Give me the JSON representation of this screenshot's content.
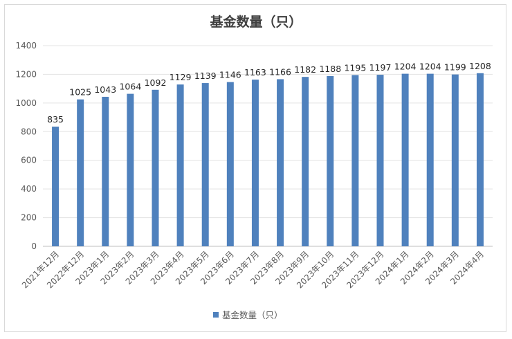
{
  "chart_data": {
    "type": "bar",
    "title": "基金数量（只）",
    "xlabel": "",
    "ylabel": "",
    "ylim": [
      0,
      1400
    ],
    "yticks": [
      0,
      200,
      400,
      600,
      800,
      1000,
      1200,
      1400
    ],
    "grid": true,
    "legend_position": "bottom",
    "categories": [
      "2021年12月",
      "2022年12月",
      "2023年1月",
      "2023年2月",
      "2023年3月",
      "2023年4月",
      "2023年5月",
      "2023年6月",
      "2023年7月",
      "2023年8月",
      "2023年9月",
      "2023年10月",
      "2023年11月",
      "2023年12月",
      "2024年1月",
      "2024年2月",
      "2024年3月",
      "2024年4月"
    ],
    "series": [
      {
        "name": "基金数量（只）",
        "color": "#4f81bd",
        "values": [
          835,
          1025,
          1043,
          1064,
          1092,
          1129,
          1139,
          1146,
          1163,
          1166,
          1182,
          1188,
          1195,
          1197,
          1204,
          1204,
          1199,
          1208
        ]
      }
    ]
  }
}
